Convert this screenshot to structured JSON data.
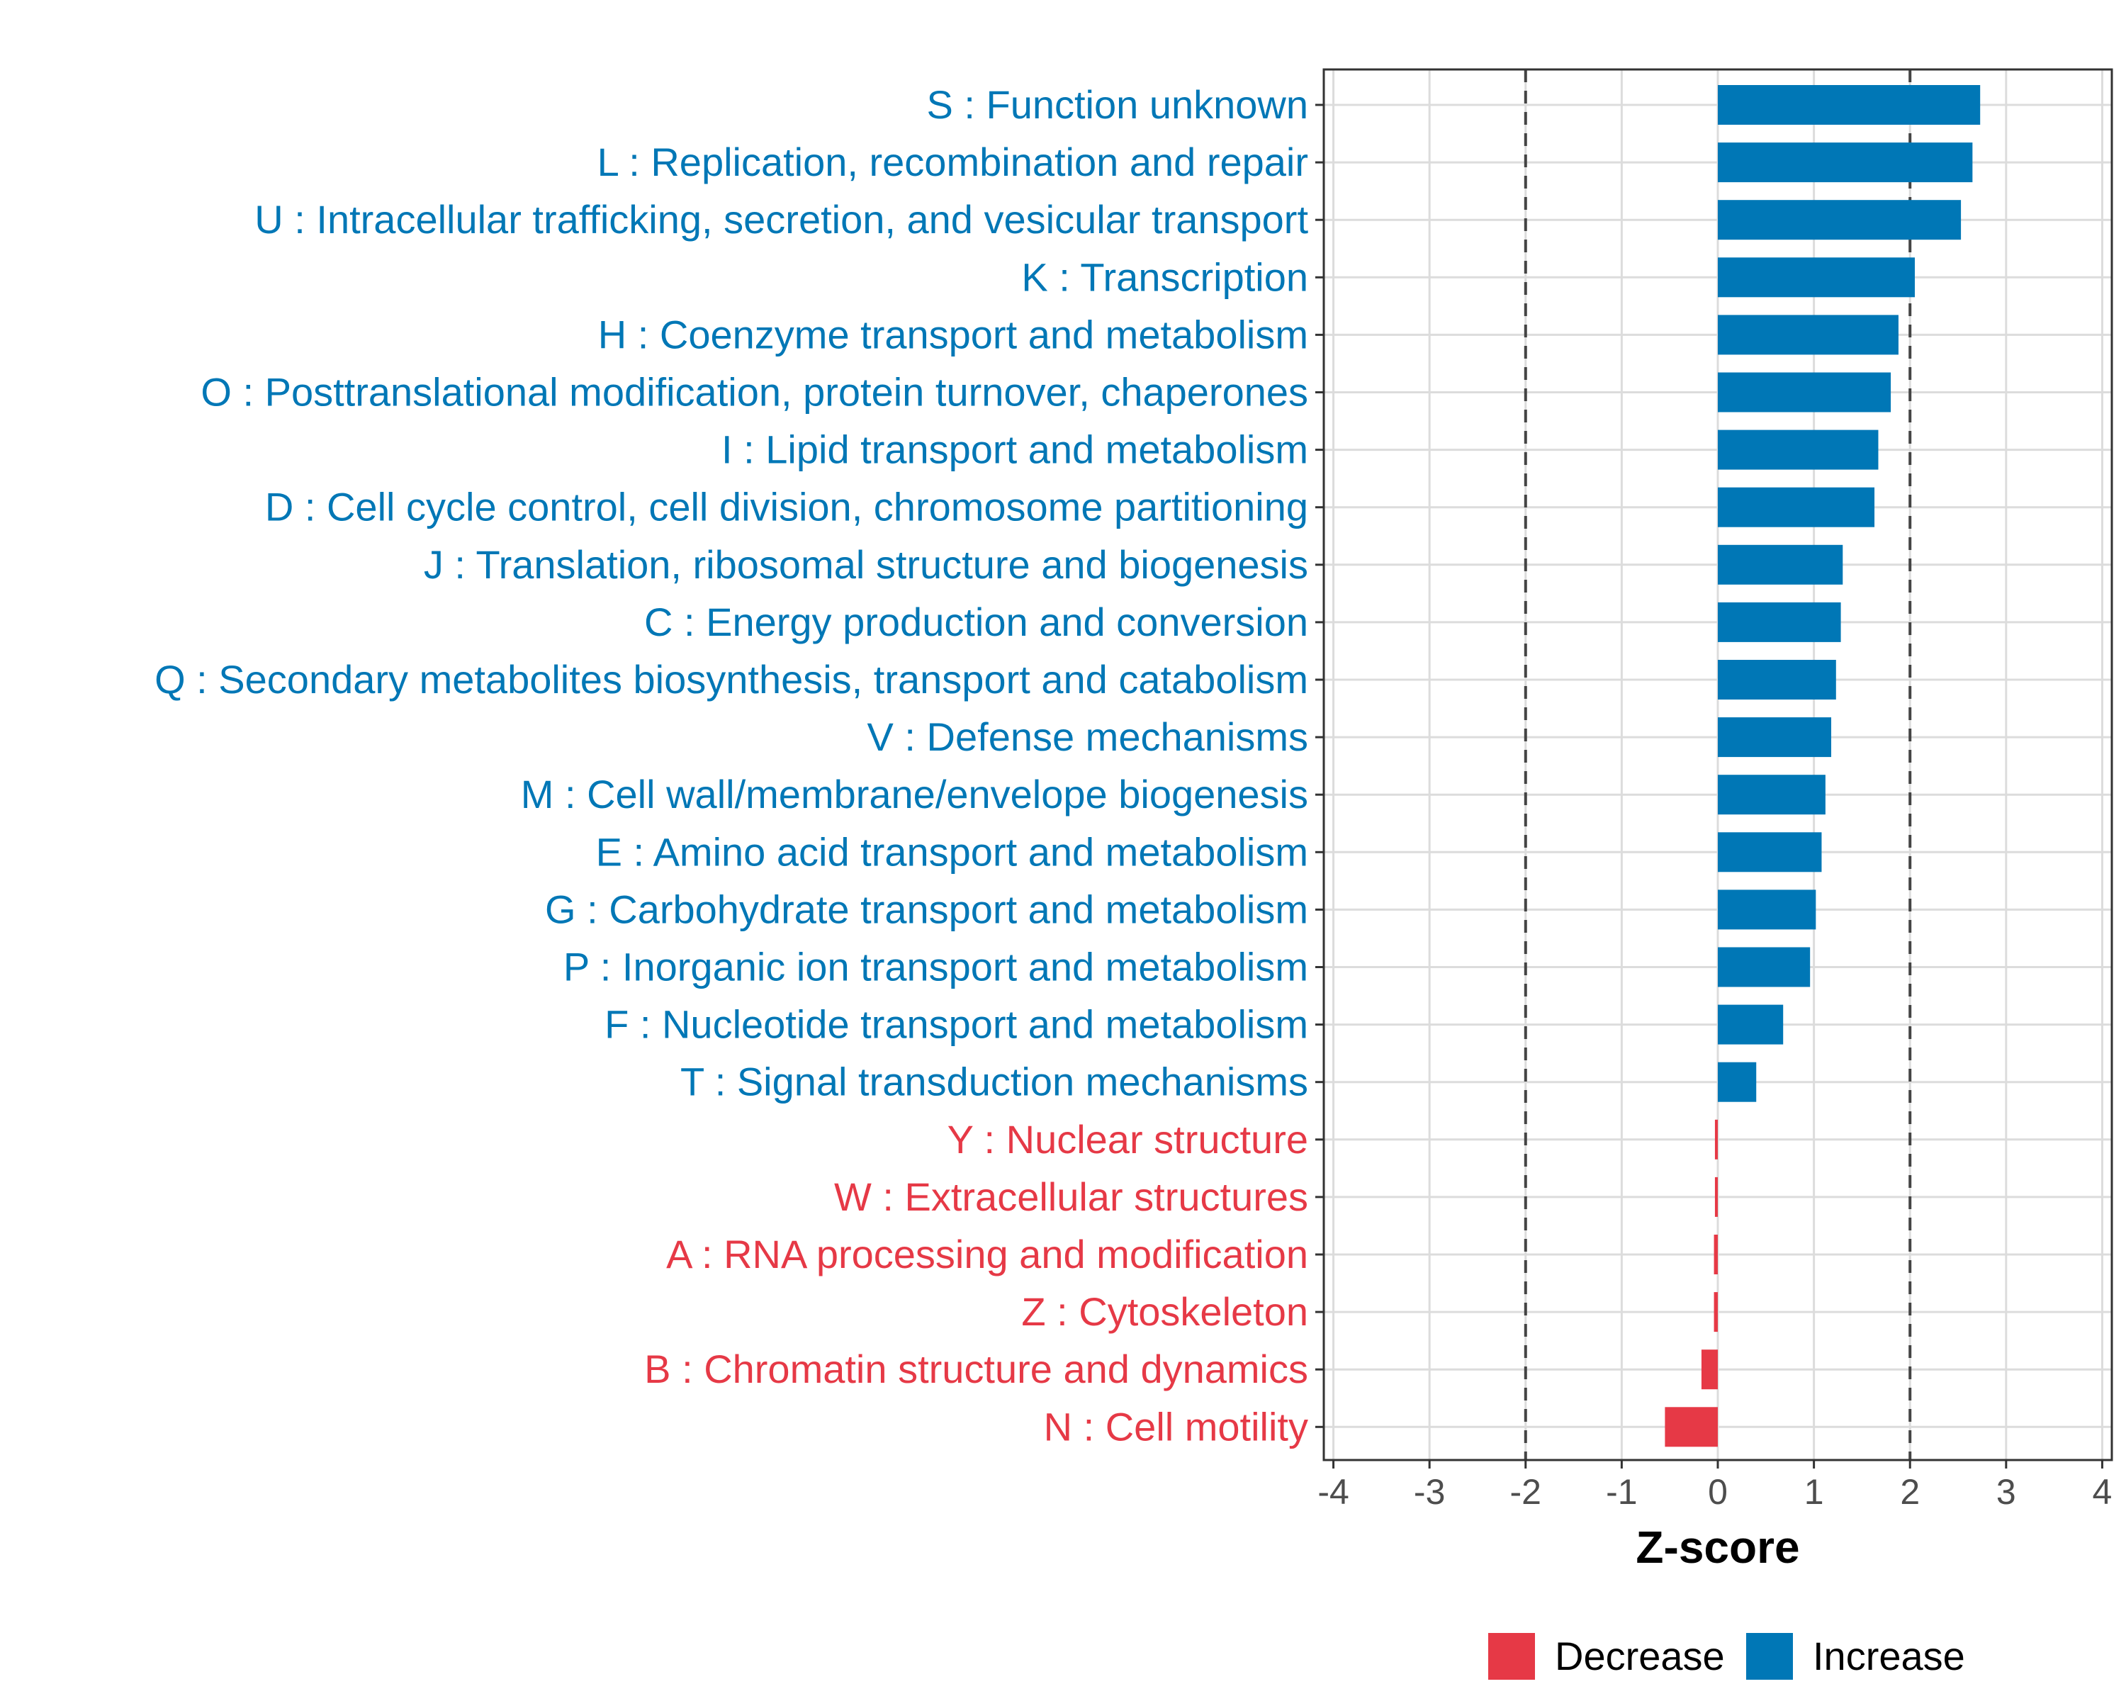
{
  "chart_data": {
    "type": "bar",
    "orientation": "horizontal",
    "xlabel": "Z-score",
    "xlim": [
      -4.1,
      4.1
    ],
    "xticks": [
      -4,
      -3,
      -2,
      -1,
      0,
      1,
      2,
      3,
      4
    ],
    "xtick_labels": [
      "-4",
      "-3",
      "-2",
      "-1",
      "0",
      "1",
      "2",
      "3",
      "4"
    ],
    "reference_lines": [
      -2,
      2
    ],
    "grid": true,
    "colors": {
      "Decrease": "#e63946",
      "Increase": "#0077b6"
    },
    "categories": [
      "S : Function unknown",
      "L : Replication, recombination and repair",
      "U : Intracellular trafficking, secretion, and vesicular transport",
      "K : Transcription",
      "H : Coenzyme transport and metabolism",
      "O : Posttranslational modification, protein turnover, chaperones",
      "I : Lipid transport and metabolism",
      "D : Cell cycle control, cell division, chromosome partitioning",
      "J : Translation, ribosomal structure and biogenesis",
      "C : Energy production and conversion",
      "Q : Secondary metabolites biosynthesis, transport and catabolism",
      "V : Defense mechanisms",
      "M : Cell wall/membrane/envelope biogenesis",
      "E : Amino acid transport and metabolism",
      "G : Carbohydrate transport and metabolism",
      "P : Inorganic ion transport and metabolism",
      "F : Nucleotide transport and metabolism",
      "T : Signal transduction mechanisms",
      "Y : Nuclear structure",
      "W : Extracellular structures",
      "A : RNA processing and modification",
      "Z : Cytoskeleton",
      "B : Chromatin structure and dynamics",
      "N : Cell motility"
    ],
    "values": [
      2.73,
      2.65,
      2.53,
      2.05,
      1.88,
      1.8,
      1.67,
      1.63,
      1.3,
      1.28,
      1.23,
      1.18,
      1.12,
      1.08,
      1.02,
      0.96,
      0.68,
      0.4,
      -0.03,
      -0.03,
      -0.04,
      -0.04,
      -0.17,
      -0.55
    ],
    "groups": [
      "Increase",
      "Increase",
      "Increase",
      "Increase",
      "Increase",
      "Increase",
      "Increase",
      "Increase",
      "Increase",
      "Increase",
      "Increase",
      "Increase",
      "Increase",
      "Increase",
      "Increase",
      "Increase",
      "Increase",
      "Increase",
      "Decrease",
      "Decrease",
      "Decrease",
      "Decrease",
      "Decrease",
      "Decrease"
    ],
    "legend": {
      "position": "bottom",
      "entries": [
        {
          "label": "Decrease",
          "color": "#e63946"
        },
        {
          "label": "Increase",
          "color": "#0077b6"
        }
      ]
    }
  }
}
